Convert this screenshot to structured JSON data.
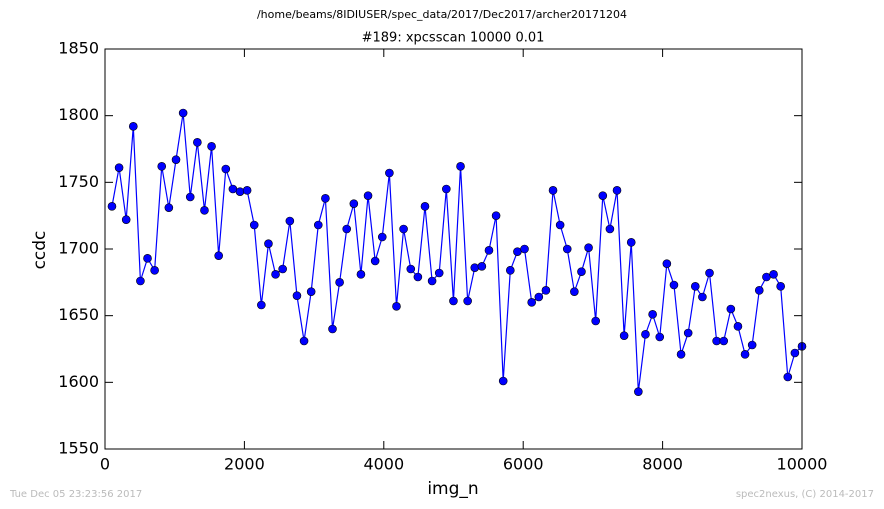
{
  "header": "/home/beams/8IDIUSER/spec_data/2017/Dec2017/archer20171204",
  "footer_left": "Tue Dec 05 23:23:56 2017",
  "footer_right": "spec2nexus, (C) 2014-2017",
  "chart_data": {
    "type": "line",
    "title": "#189: xpcsscan 10000 0.01",
    "xlabel": "img_n",
    "ylabel": "ccdc",
    "color": "#0000ff",
    "grid": false,
    "xlim": [
      0,
      10000
    ],
    "xticks": [
      0,
      2000,
      4000,
      6000,
      8000,
      10000
    ],
    "ylim": [
      1550,
      1850
    ],
    "yticks": [
      1550,
      1600,
      1650,
      1700,
      1750,
      1800,
      1850
    ],
    "x": [
      100,
      202,
      304,
      406,
      508,
      610,
      712,
      814,
      916,
      1019,
      1121,
      1223,
      1325,
      1427,
      1529,
      1631,
      1733,
      1835,
      1937,
      2039,
      2141,
      2243,
      2345,
      2447,
      2549,
      2652,
      2754,
      2856,
      2958,
      3060,
      3162,
      3264,
      3366,
      3468,
      3570,
      3672,
      3774,
      3876,
      3978,
      4080,
      4182,
      4284,
      4387,
      4489,
      4591,
      4693,
      4795,
      4897,
      4999,
      5101,
      5203,
      5305,
      5407,
      5509,
      5611,
      5713,
      5815,
      5917,
      6019,
      6122,
      6224,
      6326,
      6428,
      6530,
      6632,
      6734,
      6836,
      6938,
      7040,
      7142,
      7244,
      7346,
      7448,
      7550,
      7652,
      7754,
      7857,
      7959,
      8061,
      8163,
      8265,
      8367,
      8469,
      8571,
      8673,
      8775,
      8877,
      8979,
      9081,
      9183,
      9285,
      9387,
      9490,
      9592,
      9694,
      9796,
      9898,
      10000
    ],
    "values": [
      1732,
      1761,
      1722,
      1792,
      1676,
      1693,
      1684,
      1762,
      1731,
      1767,
      1802,
      1739,
      1780,
      1729,
      1777,
      1695,
      1760,
      1745,
      1743,
      1744,
      1718,
      1658,
      1704,
      1681,
      1685,
      1721,
      1665,
      1631,
      1668,
      1718,
      1738,
      1640,
      1675,
      1715,
      1734,
      1681,
      1740,
      1691,
      1709,
      1757,
      1657,
      1715,
      1685,
      1679,
      1732,
      1676,
      1682,
      1745,
      1661,
      1762,
      1661,
      1686,
      1687,
      1699,
      1725,
      1601,
      1684,
      1698,
      1700,
      1660,
      1664,
      1669,
      1744,
      1718,
      1700,
      1668,
      1683,
      1701,
      1646,
      1740,
      1715,
      1744,
      1635,
      1705,
      1593,
      1636,
      1651,
      1634,
      1689,
      1673,
      1621,
      1637,
      1672,
      1664,
      1682,
      1631,
      1631,
      1655,
      1642,
      1621,
      1628,
      1669,
      1679,
      1681,
      1672,
      1604,
      1622,
      1627
    ]
  }
}
